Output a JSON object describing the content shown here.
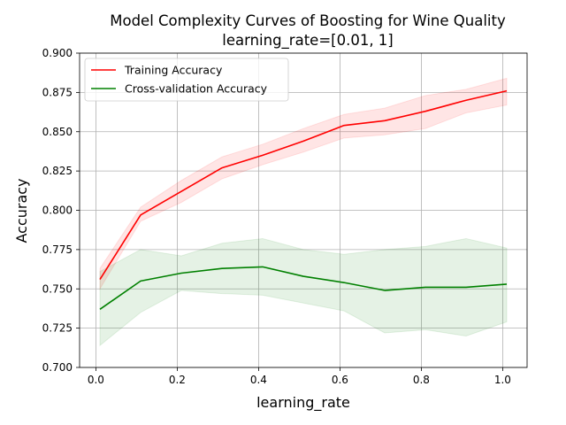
{
  "chart_data": {
    "type": "line",
    "title_lines": [
      "Model Complexity Curves of Boosting for Wine Quality",
      "learning_rate=[0.01, 1]"
    ],
    "xlabel": "learning_rate",
    "ylabel": "Accuracy",
    "xlim": [
      -0.04,
      1.06
    ],
    "ylim": [
      0.7,
      0.9
    ],
    "xticks": [
      0.0,
      0.2,
      0.4,
      0.6,
      0.8,
      1.0
    ],
    "xtick_labels": [
      "0.0",
      "0.2",
      "0.4",
      "0.6",
      "0.8",
      "1.0"
    ],
    "yticks": [
      0.7,
      0.725,
      0.75,
      0.775,
      0.8,
      0.825,
      0.85,
      0.875,
      0.9
    ],
    "ytick_labels": [
      "0.700",
      "0.725",
      "0.750",
      "0.775",
      "0.800",
      "0.825",
      "0.850",
      "0.875",
      "0.900"
    ],
    "grid": true,
    "legend_position": "upper-left",
    "x": [
      0.01,
      0.11,
      0.21,
      0.31,
      0.41,
      0.51,
      0.61,
      0.71,
      0.81,
      0.91,
      1.01
    ],
    "series": [
      {
        "name": "Training Accuracy",
        "color": "#ff0000",
        "values": [
          0.756,
          0.797,
          0.812,
          0.827,
          0.835,
          0.844,
          0.854,
          0.857,
          0.863,
          0.87,
          0.876
        ],
        "lower": [
          0.75,
          0.793,
          0.805,
          0.82,
          0.829,
          0.837,
          0.846,
          0.848,
          0.852,
          0.862,
          0.867
        ],
        "upper": [
          0.763,
          0.802,
          0.819,
          0.834,
          0.842,
          0.852,
          0.861,
          0.865,
          0.873,
          0.877,
          0.884
        ],
        "band_color": "#ff0000"
      },
      {
        "name": "Cross-validation Accuracy",
        "color": "#008000",
        "values": [
          0.737,
          0.755,
          0.76,
          0.763,
          0.764,
          0.758,
          0.754,
          0.749,
          0.751,
          0.751,
          0.753
        ],
        "lower": [
          0.714,
          0.735,
          0.749,
          0.747,
          0.746,
          0.741,
          0.736,
          0.722,
          0.724,
          0.72,
          0.729
        ],
        "upper": [
          0.761,
          0.775,
          0.771,
          0.779,
          0.782,
          0.775,
          0.772,
          0.775,
          0.777,
          0.782,
          0.776
        ],
        "band_color": "#008000"
      }
    ]
  }
}
